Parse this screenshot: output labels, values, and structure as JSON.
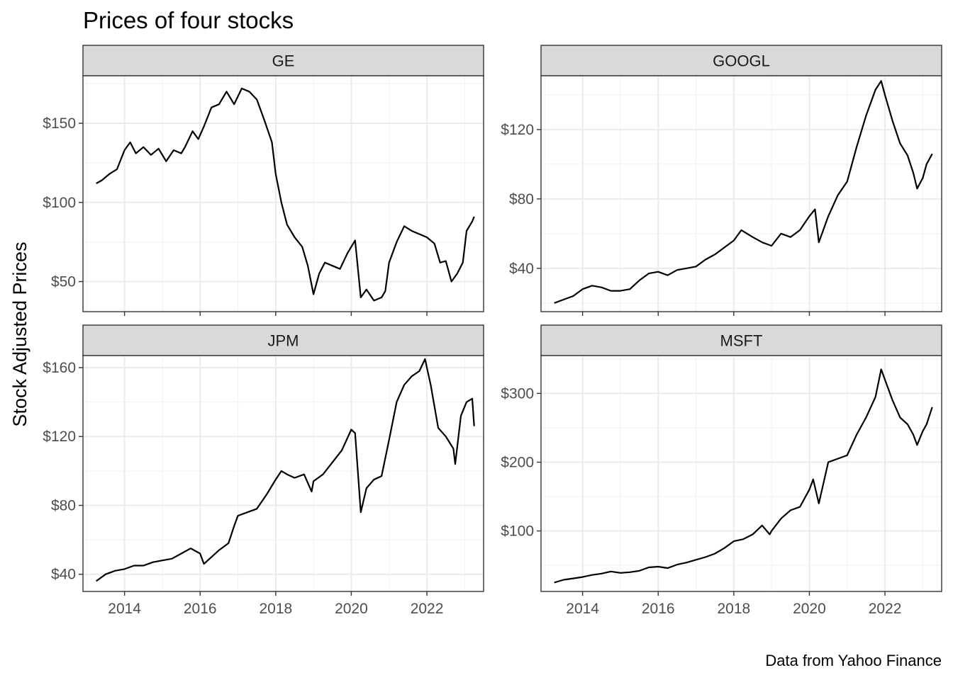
{
  "chart_data": {
    "type": "line",
    "title": "Prices of four stocks",
    "ylabel": "Stock Adjusted Prices",
    "xlabel": "",
    "caption": "Data from Yahoo Finance",
    "x_ticks": [
      "2014",
      "2016",
      "2018",
      "2020",
      "2022"
    ],
    "xlim": [
      2012.9,
      2023.5
    ],
    "grid": true,
    "line_color": "#000000",
    "strip_fill": "#d9d9d9",
    "panels": [
      {
        "name": "GE",
        "ylim": [
          31,
          180
        ],
        "y_ticks": [
          50,
          100,
          150
        ],
        "y_tick_labels": [
          "$50",
          "$100",
          "$150"
        ],
        "series": {
          "x": [
            2013.25,
            2013.4,
            2013.6,
            2013.8,
            2014.0,
            2014.15,
            2014.3,
            2014.5,
            2014.7,
            2014.9,
            2015.1,
            2015.3,
            2015.5,
            2015.6,
            2015.8,
            2015.95,
            2016.1,
            2016.3,
            2016.5,
            2016.7,
            2016.9,
            2017.1,
            2017.3,
            2017.5,
            2017.7,
            2017.9,
            2018.0,
            2018.15,
            2018.3,
            2018.5,
            2018.7,
            2018.85,
            2019.0,
            2019.15,
            2019.3,
            2019.5,
            2019.7,
            2019.9,
            2020.0,
            2020.1,
            2020.25,
            2020.4,
            2020.6,
            2020.8,
            2020.9,
            2021.0,
            2021.2,
            2021.4,
            2021.6,
            2021.8,
            2022.0,
            2022.2,
            2022.35,
            2022.5,
            2022.65,
            2022.8,
            2022.95,
            2023.05,
            2023.2,
            2023.25
          ],
          "values": [
            112,
            114,
            118,
            121,
            133,
            138,
            131,
            135,
            130,
            134,
            126,
            133,
            131,
            135,
            145,
            140,
            148,
            160,
            162,
            170,
            162,
            172,
            170,
            165,
            152,
            138,
            118,
            100,
            86,
            78,
            72,
            60,
            42,
            55,
            62,
            60,
            58,
            68,
            72,
            76,
            40,
            45,
            38,
            40,
            44,
            62,
            75,
            85,
            82,
            80,
            78,
            74,
            62,
            63,
            50,
            55,
            62,
            82,
            88,
            91
          ]
        }
      },
      {
        "name": "GOOGL",
        "ylim": [
          15,
          151
        ],
        "y_ticks": [
          40,
          80,
          120
        ],
        "y_tick_labels": [
          "$40",
          "$80",
          "$120"
        ],
        "series": {
          "x": [
            2013.25,
            2013.5,
            2013.75,
            2014.0,
            2014.25,
            2014.5,
            2014.75,
            2015.0,
            2015.25,
            2015.5,
            2015.75,
            2016.0,
            2016.25,
            2016.5,
            2016.75,
            2017.0,
            2017.25,
            2017.5,
            2017.75,
            2018.0,
            2018.2,
            2018.5,
            2018.75,
            2019.0,
            2019.25,
            2019.5,
            2019.75,
            2020.0,
            2020.15,
            2020.25,
            2020.5,
            2020.75,
            2021.0,
            2021.25,
            2021.5,
            2021.75,
            2021.9,
            2022.0,
            2022.2,
            2022.4,
            2022.6,
            2022.75,
            2022.85,
            2023.0,
            2023.1,
            2023.25
          ],
          "values": [
            20,
            22,
            24,
            28,
            30,
            29,
            27,
            27,
            28,
            33,
            37,
            38,
            36,
            39,
            40,
            41,
            45,
            48,
            52,
            56,
            62,
            58,
            55,
            53,
            60,
            58,
            62,
            70,
            74,
            55,
            70,
            82,
            90,
            110,
            128,
            143,
            148,
            140,
            125,
            112,
            105,
            95,
            86,
            92,
            100,
            106
          ]
        }
      },
      {
        "name": "JPM",
        "ylim": [
          30,
          167
        ],
        "y_ticks": [
          40,
          80,
          120,
          160
        ],
        "y_tick_labels": [
          "$40",
          "$80",
          "$120",
          "$160"
        ],
        "series": {
          "x": [
            2013.25,
            2013.5,
            2013.75,
            2014.0,
            2014.25,
            2014.5,
            2014.75,
            2015.0,
            2015.25,
            2015.5,
            2015.75,
            2016.0,
            2016.1,
            2016.3,
            2016.5,
            2016.75,
            2016.9,
            2017.0,
            2017.25,
            2017.5,
            2017.75,
            2018.0,
            2018.15,
            2018.3,
            2018.5,
            2018.75,
            2018.95,
            2019.0,
            2019.25,
            2019.5,
            2019.75,
            2020.0,
            2020.1,
            2020.25,
            2020.4,
            2020.6,
            2020.8,
            2021.0,
            2021.2,
            2021.4,
            2021.6,
            2021.8,
            2021.95,
            2022.1,
            2022.3,
            2022.5,
            2022.7,
            2022.75,
            2022.9,
            2023.05,
            2023.2,
            2023.25
          ],
          "values": [
            36,
            40,
            42,
            43,
            45,
            45,
            47,
            48,
            49,
            52,
            55,
            52,
            46,
            50,
            54,
            58,
            68,
            74,
            76,
            78,
            86,
            95,
            100,
            98,
            96,
            98,
            88,
            94,
            98,
            105,
            112,
            124,
            122,
            76,
            90,
            95,
            97,
            118,
            140,
            150,
            155,
            158,
            165,
            150,
            125,
            120,
            113,
            104,
            132,
            140,
            142,
            126
          ]
        }
      },
      {
        "name": "MSFT",
        "ylim": [
          12,
          355
        ],
        "y_ticks": [
          100,
          200,
          300
        ],
        "y_tick_labels": [
          "$100",
          "$200",
          "$300"
        ],
        "series": {
          "x": [
            2013.25,
            2013.5,
            2013.75,
            2014.0,
            2014.25,
            2014.5,
            2014.75,
            2015.0,
            2015.25,
            2015.5,
            2015.75,
            2016.0,
            2016.25,
            2016.5,
            2016.75,
            2017.0,
            2017.25,
            2017.5,
            2017.75,
            2018.0,
            2018.25,
            2018.5,
            2018.75,
            2018.95,
            2019.0,
            2019.25,
            2019.5,
            2019.75,
            2020.0,
            2020.1,
            2020.25,
            2020.5,
            2020.75,
            2021.0,
            2021.25,
            2021.5,
            2021.75,
            2021.9,
            2022.0,
            2022.2,
            2022.4,
            2022.6,
            2022.75,
            2022.85,
            2023.0,
            2023.1,
            2023.25
          ],
          "values": [
            25,
            29,
            31,
            33,
            36,
            38,
            41,
            39,
            40,
            42,
            47,
            48,
            46,
            51,
            54,
            58,
            62,
            67,
            75,
            85,
            88,
            95,
            108,
            95,
            100,
            118,
            130,
            135,
            160,
            175,
            140,
            200,
            205,
            210,
            240,
            265,
            295,
            335,
            320,
            290,
            265,
            255,
            240,
            225,
            245,
            255,
            280
          ]
        }
      }
    ]
  }
}
